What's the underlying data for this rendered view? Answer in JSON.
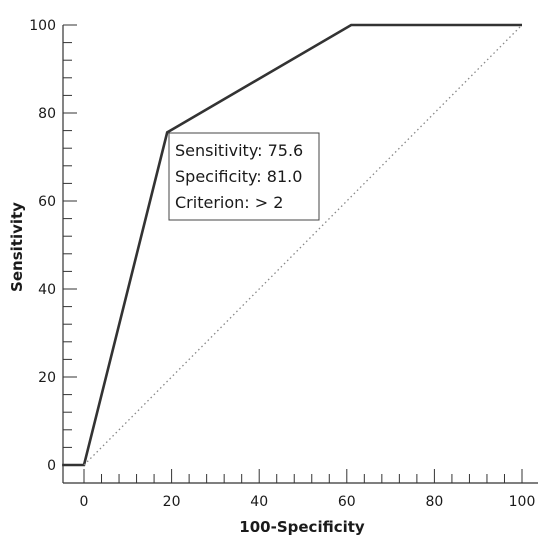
{
  "chart_data": {
    "type": "line",
    "xlabel": "100-Specificity",
    "ylabel": "Sensitivity",
    "xlim": [
      0,
      100
    ],
    "ylim": [
      0,
      100
    ],
    "x_ticks": [
      "0",
      "20",
      "40",
      "60",
      "80",
      "100"
    ],
    "y_ticks": [
      "0",
      "20",
      "40",
      "60",
      "80",
      "100"
    ],
    "series": [
      {
        "style": "solid",
        "color": "#333333",
        "x": [
          -5,
          0,
          19.0,
          61.0,
          100
        ],
        "y": [
          0,
          0,
          75.6,
          100,
          100
        ]
      },
      {
        "style": "dotted",
        "color": "#888888",
        "x": [
          0,
          100
        ],
        "y": [
          0,
          100
        ]
      }
    ],
    "annotation": {
      "lines": [
        "Sensitivity: 75.6",
        "Specificity: 81.0",
        "Criterion: > 2"
      ]
    }
  }
}
